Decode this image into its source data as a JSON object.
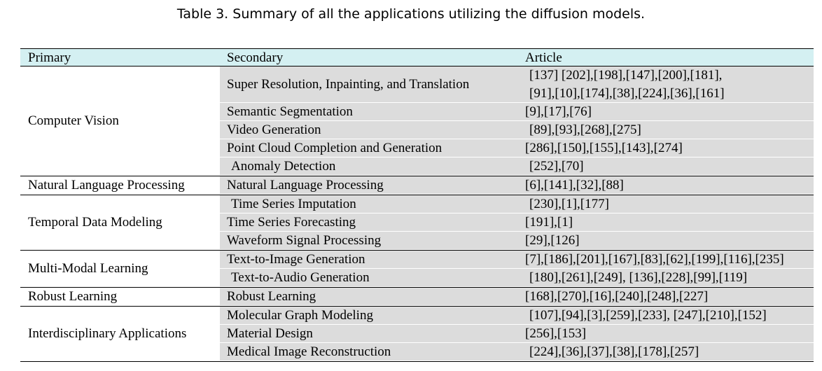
{
  "caption": "Table 3.  Summary of all the applications utilizing the diffusion models.",
  "headers": {
    "primary": "Primary",
    "secondary": "Secondary",
    "article": "Article"
  },
  "groups": [
    {
      "primary": "Computer Vision",
      "rows": [
        {
          "secondary": "Super Resolution, Inpainting, and Translation",
          "article": [
            "[137] [202],[198],[147],[200],[181],",
            "[91],[10],[174],[38],[224],[36],[161]"
          ]
        },
        {
          "secondary": "Semantic Segmentation",
          "article": [
            "[9],[17],[76]"
          ]
        },
        {
          "secondary": "Video Generation",
          "article": [
            "[89],[93],[268],[275]"
          ]
        },
        {
          "secondary": "Point Cloud Completion and Generation",
          "article": [
            "[286],[150],[155],[143],[274]"
          ]
        },
        {
          "secondary": "Anomaly Detection",
          "article": [
            "[252],[70]"
          ]
        }
      ]
    },
    {
      "primary": "Natural Language Processing",
      "rows": [
        {
          "secondary": "Natural Language Processing",
          "article": [
            "[6],[141],[32],[88]"
          ]
        }
      ]
    },
    {
      "primary": "Temporal Data Modeling",
      "rows": [
        {
          "secondary": "Time Series Imputation",
          "article": [
            "[230],[1],[177]"
          ]
        },
        {
          "secondary": "Time Series Forecasting",
          "article": [
            "[191],[1]"
          ]
        },
        {
          "secondary": "Waveform Signal Processing",
          "article": [
            "[29],[126]"
          ]
        }
      ]
    },
    {
      "primary": "Multi-Modal Learning",
      "rows": [
        {
          "secondary": "Text-to-Image Generation",
          "article": [
            "[7],[186],[201],[167],[83],[62],[199],[116],[235]"
          ]
        },
        {
          "secondary": "Text-to-Audio Generation",
          "article": [
            "[180],[261],[249], [136],[228],[99],[119]"
          ]
        }
      ]
    },
    {
      "primary": "Robust Learning",
      "rows": [
        {
          "secondary": "Robust Learning",
          "article": [
            "[168],[270],[16],[240],[248],[227]"
          ]
        }
      ]
    },
    {
      "primary": "Interdisciplinary Applications",
      "rows": [
        {
          "secondary": "Molecular Graph Modeling",
          "article": [
            "[107],[94],[3],[259],[233], [247],[210],[152]"
          ]
        },
        {
          "secondary": "Material Design",
          "article": [
            "[256],[153]"
          ]
        },
        {
          "secondary": "Medical Image Reconstruction",
          "article": [
            "[224],[36],[37],[38],[178],[257]"
          ]
        }
      ]
    }
  ]
}
